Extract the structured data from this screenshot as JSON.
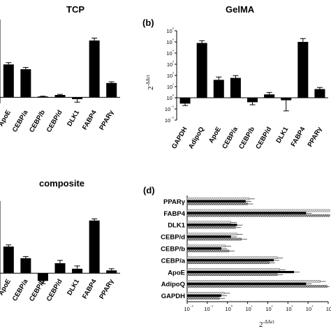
{
  "labels": {
    "tcp_title": "TCP",
    "gelma_title": "GelMA",
    "composite_title": "composite",
    "panel_b": "(b)",
    "panel_d": "(d)",
    "ylabel_base": "2",
    "ylabel_exp": "-ΔΔct"
  },
  "colors": {
    "bar": "#000000",
    "hatch_light": "#d9d9d9",
    "hatch_dark": "#555555"
  },
  "chart_data": [
    {
      "id": "tcp",
      "type": "bar",
      "title": "TCP",
      "categories": [
        "ApoE",
        "CEBP/a",
        "CEBP/b",
        "CEBP/d",
        "DLK1",
        "FABP4",
        "PPARγ"
      ],
      "values": [
        55,
        47,
        1.5,
        4,
        -3,
        95,
        24
      ],
      "errors": [
        3,
        3,
        0.5,
        1,
        5,
        4,
        2
      ],
      "ylim": [
        -10,
        130
      ]
    },
    {
      "id": "gelma",
      "type": "bar",
      "title": "GelMA",
      "yscale": "log",
      "ylim": [
        0.01,
        1000000
      ],
      "y_ticks": [
        "10⁻²",
        "10⁻¹",
        "10⁰",
        "10¹",
        "10²",
        "10³",
        "10⁴",
        "10⁵",
        "10⁶"
      ],
      "categories": [
        "GAPDH",
        "AdipoQ",
        "ApoE",
        "CEBP/a",
        "CEBP/b",
        "CEBP/d",
        "DLK1",
        "FABP4",
        "PPARγ"
      ],
      "values": [
        0.3,
        80000,
        40,
        60,
        0.4,
        2,
        0.6,
        100000,
        6
      ],
      "error_factor": [
        1.5,
        1.6,
        1.8,
        1.6,
        1.7,
        1.5,
        9,
        2,
        1.4
      ]
    },
    {
      "id": "composite",
      "type": "bar",
      "title": "composite",
      "categories": [
        "ApoE",
        "CEBP/a",
        "CEBP/b",
        "CEBP/d",
        "DLK1",
        "FABP4",
        "PPARγ"
      ],
      "values": [
        48,
        27,
        -14,
        18,
        8,
        95,
        5
      ],
      "errors": [
        3,
        3,
        5,
        5,
        5,
        3,
        3
      ],
      "ylim": [
        -30,
        130
      ]
    },
    {
      "id": "horizontal",
      "type": "bar",
      "orientation": "horizontal",
      "xscale": "log",
      "xlim": [
        0.01,
        100000
      ],
      "x_ticks": [
        "10⁻²",
        "10⁻¹",
        "10⁰",
        "10¹",
        "10²",
        "10³",
        "10⁴",
        "10⁵"
      ],
      "categories": [
        "PPARγ",
        "FABP4",
        "DLK1",
        "CEBP/d",
        "CEBP/b",
        "CEBP/a",
        "ApoE",
        "AdipoQ",
        "GAPDH"
      ],
      "series": [
        {
          "style": "light-hatch",
          "values": [
            12,
            120000,
            1.5,
            3,
            0.8,
            300,
            400,
            40000,
            0.7
          ]
        },
        {
          "style": "solid",
          "values": [
            8,
            8000,
            3,
            1.5,
            0.5,
            200,
            2000,
            8000,
            0.5
          ]
        },
        {
          "style": "dark-hatch",
          "values": [
            10,
            120000,
            2.5,
            5,
            1.2,
            120,
            300,
            90000,
            0.4
          ]
        }
      ]
    }
  ]
}
